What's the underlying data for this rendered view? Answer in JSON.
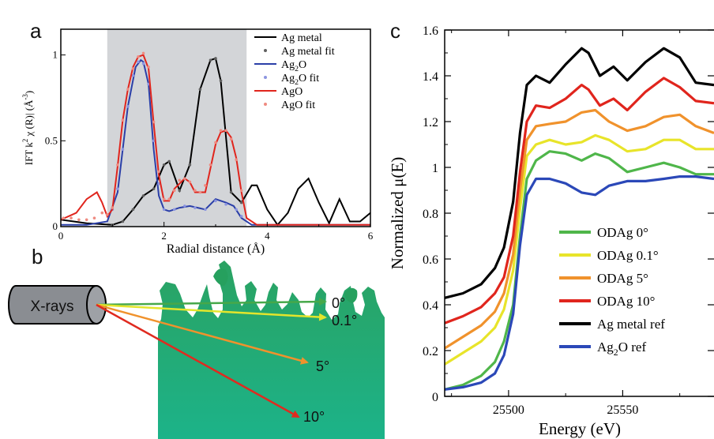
{
  "panel_labels": {
    "a": "a",
    "b": "b",
    "c": "c"
  },
  "chart_data": [
    {
      "panel": "a",
      "type": "line",
      "xlabel": "Radial distance (Å)",
      "ylabel_parts": [
        "IFT k",
        "2",
        " χ (R)| (Å",
        "-3",
        ")"
      ],
      "xlim": [
        0,
        6
      ],
      "ylim": [
        0,
        1.15
      ],
      "xticks": [
        0,
        2,
        4,
        6
      ],
      "yticks": [
        0,
        0.5,
        1
      ],
      "xtick_labels": [
        "0",
        "2",
        "4",
        "6"
      ],
      "ytick_labels": [
        "0",
        "0.5",
        "1"
      ],
      "shaded_region": [
        0.9,
        3.6
      ],
      "shade_color": "#d3d5d8",
      "legend_position": "top-right",
      "series": [
        {
          "name": "Ag metal",
          "kind": "line",
          "color": "#000000",
          "x": [
            0,
            0.5,
            1.0,
            1.2,
            1.4,
            1.6,
            1.8,
            2.0,
            2.1,
            2.3,
            2.5,
            2.7,
            2.9,
            3.0,
            3.1,
            3.3,
            3.5,
            3.7,
            3.8,
            4.0,
            4.2,
            4.4,
            4.6,
            4.8,
            5.0,
            5.2,
            5.4,
            5.6,
            5.8,
            6.0
          ],
          "y": [
            0.04,
            0.02,
            0.01,
            0.03,
            0.1,
            0.18,
            0.22,
            0.36,
            0.38,
            0.21,
            0.36,
            0.8,
            0.97,
            0.98,
            0.85,
            0.2,
            0.14,
            0.24,
            0.24,
            0.1,
            0.01,
            0.08,
            0.22,
            0.28,
            0.14,
            0.02,
            0.16,
            0.03,
            0.03,
            0.08
          ]
        },
        {
          "name": "Ag metal fit",
          "kind": "points",
          "color": "#606060",
          "x": [
            1.0,
            1.2,
            1.4,
            1.6,
            1.8,
            2.0,
            2.1,
            2.3,
            2.5,
            2.7,
            2.9,
            3.0,
            3.1,
            3.3,
            3.5
          ],
          "y": [
            0.01,
            0.03,
            0.1,
            0.18,
            0.22,
            0.36,
            0.38,
            0.21,
            0.36,
            0.8,
            0.97,
            0.98,
            0.85,
            0.2,
            0.14
          ]
        },
        {
          "name": "Ag_2O",
          "kind": "line",
          "color": "#2b3fa8",
          "x": [
            0,
            0.5,
            0.9,
            1.1,
            1.3,
            1.45,
            1.55,
            1.6,
            1.7,
            1.8,
            1.9,
            2.0,
            2.1,
            2.3,
            2.5,
            2.8,
            3.0,
            3.2,
            3.35,
            3.5,
            3.7,
            4.0,
            4.5,
            5.0,
            5.5,
            6.0
          ],
          "y": [
            0.01,
            0.01,
            0.03,
            0.2,
            0.7,
            0.93,
            0.97,
            0.96,
            0.83,
            0.45,
            0.18,
            0.1,
            0.09,
            0.11,
            0.12,
            0.1,
            0.16,
            0.14,
            0.12,
            0.05,
            0.01,
            0.01,
            0.01,
            0.01,
            0.01,
            0.01
          ]
        },
        {
          "name": "Ag_2O fit",
          "kind": "points",
          "color": "#8c95e0",
          "x": [
            1.0,
            1.1,
            1.2,
            1.3,
            1.4,
            1.5,
            1.6,
            1.7,
            1.8,
            1.9,
            2.0,
            2.2,
            2.4,
            2.6,
            2.8,
            3.0,
            3.2,
            3.4,
            3.5
          ],
          "y": [
            0.1,
            0.22,
            0.45,
            0.7,
            0.88,
            0.96,
            0.95,
            0.83,
            0.5,
            0.25,
            0.1,
            0.1,
            0.12,
            0.11,
            0.1,
            0.15,
            0.13,
            0.1,
            0.06
          ]
        },
        {
          "name": "AgO",
          "kind": "line",
          "color": "#e0251d",
          "x": [
            0,
            0.3,
            0.5,
            0.7,
            0.8,
            0.9,
            1.0,
            1.1,
            1.2,
            1.3,
            1.4,
            1.5,
            1.6,
            1.7,
            1.8,
            1.9,
            2.0,
            2.1,
            2.2,
            2.4,
            2.5,
            2.6,
            2.8,
            3.0,
            3.1,
            3.2,
            3.3,
            3.4,
            3.5,
            3.6,
            3.8,
            4.2,
            5.0,
            6.0
          ],
          "y": [
            0.04,
            0.08,
            0.16,
            0.2,
            0.14,
            0.06,
            0.1,
            0.35,
            0.62,
            0.8,
            0.93,
            0.99,
            1.0,
            0.92,
            0.6,
            0.3,
            0.15,
            0.15,
            0.22,
            0.28,
            0.26,
            0.2,
            0.2,
            0.48,
            0.55,
            0.56,
            0.52,
            0.4,
            0.2,
            0.05,
            0.01,
            0.01,
            0.01,
            0.01
          ]
        },
        {
          "name": "AgO fit",
          "kind": "points",
          "color": "#ef8a80",
          "x": [
            0.05,
            0.2,
            0.35,
            0.5,
            0.65,
            0.8,
            0.9,
            1.0,
            1.1,
            1.2,
            1.3,
            1.4,
            1.5,
            1.6,
            1.7,
            1.8,
            1.9,
            2.0,
            2.1,
            2.2,
            2.3,
            2.4,
            2.5,
            2.6,
            2.7,
            2.8,
            2.9,
            3.0,
            3.1,
            3.2,
            3.3,
            3.4,
            3.5
          ],
          "y": [
            0.05,
            0.05,
            0.04,
            0.04,
            0.05,
            0.08,
            0.07,
            0.11,
            0.36,
            0.62,
            0.8,
            0.92,
            0.99,
            1.01,
            0.93,
            0.61,
            0.32,
            0.16,
            0.16,
            0.21,
            0.27,
            0.28,
            0.26,
            0.21,
            0.2,
            0.24,
            0.36,
            0.49,
            0.56,
            0.56,
            0.51,
            0.39,
            0.21
          ]
        }
      ]
    },
    {
      "panel": "b",
      "type": "diagram",
      "source_label": "X-rays",
      "beams": [
        {
          "label": "0°",
          "color": "#46a84a",
          "angle_deg": 0
        },
        {
          "label": "0.1°",
          "color": "#e3e52c",
          "angle_deg": 0.1
        },
        {
          "label": "5°",
          "color": "#f0922c",
          "angle_deg": 5
        },
        {
          "label": "10°",
          "color": "#e02a1f",
          "angle_deg": 10
        }
      ]
    },
    {
      "panel": "c",
      "type": "line",
      "xlabel": "Energy (eV)",
      "ylabel": "Normalized  μ(E)",
      "xlim": [
        25472,
        25590
      ],
      "ylim": [
        0,
        1.6
      ],
      "xticks": [
        25500,
        25550
      ],
      "xtick_labels": [
        "25500",
        "25550"
      ],
      "yticks": [
        0,
        0.2,
        0.4,
        0.6,
        0.8,
        1,
        1.2,
        1.4,
        1.6
      ],
      "ytick_labels": [
        "0",
        "0.2",
        "0.4",
        "0.6",
        "0.8",
        "1",
        "1.2",
        "1.4",
        "1.6"
      ],
      "legend_position": "bottom-right",
      "series": [
        {
          "name": "ODAg 0°",
          "color": "#4fb64a",
          "x": [
            25472,
            25480,
            25488,
            25494,
            25498,
            25502,
            25505,
            25508,
            25512,
            25518,
            25525,
            25532,
            25538,
            25544,
            25552,
            25560,
            25568,
            25575,
            25582,
            25590
          ],
          "y": [
            0.03,
            0.05,
            0.09,
            0.15,
            0.24,
            0.4,
            0.7,
            0.95,
            1.03,
            1.07,
            1.06,
            1.03,
            1.06,
            1.04,
            0.98,
            1.0,
            1.02,
            1.0,
            0.97,
            0.97
          ]
        },
        {
          "name": "ODAg 0.1°",
          "color": "#e8e42a",
          "x": [
            25472,
            25480,
            25488,
            25494,
            25498,
            25502,
            25505,
            25508,
            25512,
            25518,
            25525,
            25532,
            25538,
            25544,
            25552,
            25560,
            25568,
            25575,
            25582,
            25590
          ],
          "y": [
            0.14,
            0.19,
            0.24,
            0.3,
            0.38,
            0.55,
            0.82,
            1.05,
            1.1,
            1.12,
            1.1,
            1.11,
            1.14,
            1.12,
            1.07,
            1.08,
            1.12,
            1.12,
            1.08,
            1.08
          ]
        },
        {
          "name": "ODAg 5°",
          "color": "#f0922c",
          "x": [
            25472,
            25480,
            25488,
            25494,
            25498,
            25502,
            25505,
            25508,
            25512,
            25518,
            25525,
            25532,
            25538,
            25544,
            25552,
            25560,
            25568,
            25575,
            25582,
            25590
          ],
          "y": [
            0.21,
            0.26,
            0.31,
            0.37,
            0.45,
            0.62,
            0.9,
            1.12,
            1.18,
            1.19,
            1.2,
            1.24,
            1.25,
            1.2,
            1.16,
            1.18,
            1.22,
            1.23,
            1.18,
            1.15
          ]
        },
        {
          "name": "ODAg 10°",
          "color": "#e0251d",
          "x": [
            25472,
            25480,
            25488,
            25494,
            25498,
            25502,
            25505,
            25508,
            25512,
            25518,
            25525,
            25532,
            25535,
            25540,
            25546,
            25552,
            25560,
            25568,
            25575,
            25582,
            25590
          ],
          "y": [
            0.32,
            0.35,
            0.39,
            0.45,
            0.52,
            0.7,
            0.98,
            1.2,
            1.27,
            1.26,
            1.3,
            1.36,
            1.34,
            1.27,
            1.3,
            1.25,
            1.33,
            1.39,
            1.35,
            1.29,
            1.28
          ]
        },
        {
          "name": "Ag metal ref",
          "color": "#000000",
          "x": [
            25472,
            25480,
            25488,
            25494,
            25498,
            25502,
            25505,
            25508,
            25512,
            25518,
            25525,
            25532,
            25535,
            25540,
            25546,
            25552,
            25560,
            25568,
            25575,
            25582,
            25590
          ],
          "y": [
            0.43,
            0.45,
            0.49,
            0.56,
            0.65,
            0.85,
            1.15,
            1.36,
            1.4,
            1.37,
            1.45,
            1.52,
            1.5,
            1.4,
            1.44,
            1.38,
            1.46,
            1.52,
            1.48,
            1.37,
            1.36
          ]
        },
        {
          "name": "Ag_2O ref",
          "color": "#2b48b8",
          "x": [
            25472,
            25480,
            25488,
            25494,
            25498,
            25502,
            25505,
            25508,
            25512,
            25518,
            25525,
            25532,
            25538,
            25544,
            25552,
            25560,
            25568,
            25575,
            25582,
            25590
          ],
          "y": [
            0.03,
            0.04,
            0.06,
            0.1,
            0.18,
            0.36,
            0.66,
            0.88,
            0.95,
            0.95,
            0.93,
            0.89,
            0.88,
            0.92,
            0.94,
            0.94,
            0.95,
            0.96,
            0.96,
            0.95
          ]
        }
      ]
    }
  ]
}
